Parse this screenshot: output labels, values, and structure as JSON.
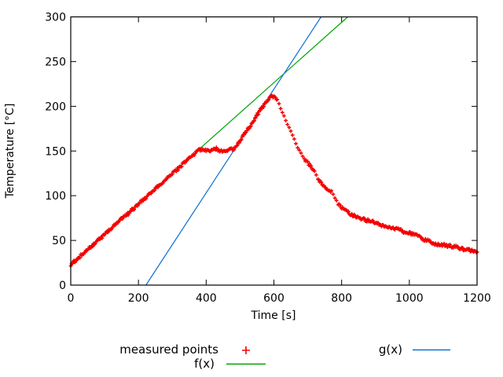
{
  "chart_data": {
    "type": "mixed",
    "title": "",
    "xlabel": "Time [s]",
    "ylabel": "Temperature [°C]",
    "xlim": [
      0,
      1200
    ],
    "ylim": [
      0,
      300
    ],
    "x_ticks": [
      0,
      200,
      400,
      600,
      800,
      1000,
      1200
    ],
    "y_ticks": [
      0,
      50,
      100,
      150,
      200,
      250,
      300
    ],
    "grid": false,
    "legend_position": "below-plot",
    "series": [
      {
        "name": "measured points",
        "type": "scatter",
        "marker": "plus",
        "color": "#f40000",
        "points": [
          [
            0,
            23
          ],
          [
            10,
            26
          ],
          [
            20,
            29
          ],
          [
            30,
            33
          ],
          [
            40,
            36
          ],
          [
            50,
            40
          ],
          [
            60,
            43
          ],
          [
            70,
            46
          ],
          [
            80,
            50
          ],
          [
            90,
            53
          ],
          [
            100,
            57
          ],
          [
            110,
            60
          ],
          [
            120,
            63
          ],
          [
            130,
            67
          ],
          [
            140,
            70
          ],
          [
            150,
            74
          ],
          [
            160,
            77
          ],
          [
            170,
            80
          ],
          [
            180,
            84
          ],
          [
            190,
            87
          ],
          [
            200,
            91
          ],
          [
            210,
            94
          ],
          [
            220,
            97
          ],
          [
            230,
            101
          ],
          [
            240,
            104
          ],
          [
            250,
            108
          ],
          [
            260,
            111
          ],
          [
            270,
            114
          ],
          [
            280,
            118
          ],
          [
            290,
            121
          ],
          [
            300,
            125
          ],
          [
            310,
            128
          ],
          [
            320,
            131
          ],
          [
            330,
            135
          ],
          [
            340,
            138
          ],
          [
            350,
            142
          ],
          [
            360,
            145
          ],
          [
            370,
            148
          ],
          [
            380,
            151
          ],
          [
            390,
            152
          ],
          [
            400,
            151
          ],
          [
            410,
            150
          ],
          [
            420,
            152
          ],
          [
            430,
            153
          ],
          [
            440,
            150
          ],
          [
            450,
            149
          ],
          [
            460,
            151
          ],
          [
            470,
            152
          ],
          [
            480,
            152
          ],
          [
            490,
            155
          ],
          [
            500,
            161
          ],
          [
            510,
            167
          ],
          [
            520,
            173
          ],
          [
            530,
            178
          ],
          [
            540,
            184
          ],
          [
            550,
            190
          ],
          [
            560,
            196
          ],
          [
            570,
            201
          ],
          [
            580,
            206
          ],
          [
            590,
            210
          ],
          [
            600,
            211
          ],
          [
            610,
            208
          ],
          [
            620,
            198
          ],
          [
            630,
            189
          ],
          [
            640,
            180
          ],
          [
            650,
            172
          ],
          [
            660,
            163
          ],
          [
            670,
            154
          ],
          [
            680,
            147
          ],
          [
            690,
            141
          ],
          [
            700,
            137
          ],
          [
            710,
            132
          ],
          [
            720,
            127
          ],
          [
            730,
            119
          ],
          [
            740,
            114
          ],
          [
            750,
            110
          ],
          [
            760,
            107
          ],
          [
            770,
            105
          ],
          [
            780,
            98
          ],
          [
            790,
            91
          ],
          [
            800,
            87
          ],
          [
            810,
            84
          ],
          [
            820,
            81
          ],
          [
            830,
            79
          ],
          [
            840,
            77
          ],
          [
            850,
            76
          ],
          [
            860,
            74
          ],
          [
            870,
            73
          ],
          [
            880,
            72
          ],
          [
            890,
            71
          ],
          [
            900,
            70
          ],
          [
            910,
            68
          ],
          [
            920,
            67
          ],
          [
            930,
            66
          ],
          [
            940,
            65
          ],
          [
            950,
            64
          ],
          [
            960,
            63
          ],
          [
            970,
            62
          ],
          [
            980,
            60
          ],
          [
            990,
            59
          ],
          [
            1000,
            58
          ],
          [
            1010,
            57
          ],
          [
            1020,
            56
          ],
          [
            1030,
            54
          ],
          [
            1040,
            52
          ],
          [
            1050,
            50
          ],
          [
            1060,
            49
          ],
          [
            1070,
            47
          ],
          [
            1080,
            46
          ],
          [
            1090,
            45
          ],
          [
            1100,
            45
          ],
          [
            1110,
            44
          ],
          [
            1120,
            44
          ],
          [
            1130,
            43
          ],
          [
            1140,
            43
          ],
          [
            1150,
            41
          ],
          [
            1160,
            40
          ],
          [
            1170,
            39
          ],
          [
            1180,
            39
          ],
          [
            1190,
            38
          ],
          [
            1200,
            37
          ]
        ]
      },
      {
        "name": "f(x)",
        "type": "line",
        "color": "#00a400",
        "slope": 0.3374,
        "intercept": 24
      },
      {
        "name": "g(x)",
        "type": "line",
        "color": "#0d6fd8",
        "slope": 0.58,
        "intercept": -128.8
      }
    ]
  },
  "colors": {
    "background": "#ffffff",
    "axis": "#000000",
    "text": "#000000"
  }
}
